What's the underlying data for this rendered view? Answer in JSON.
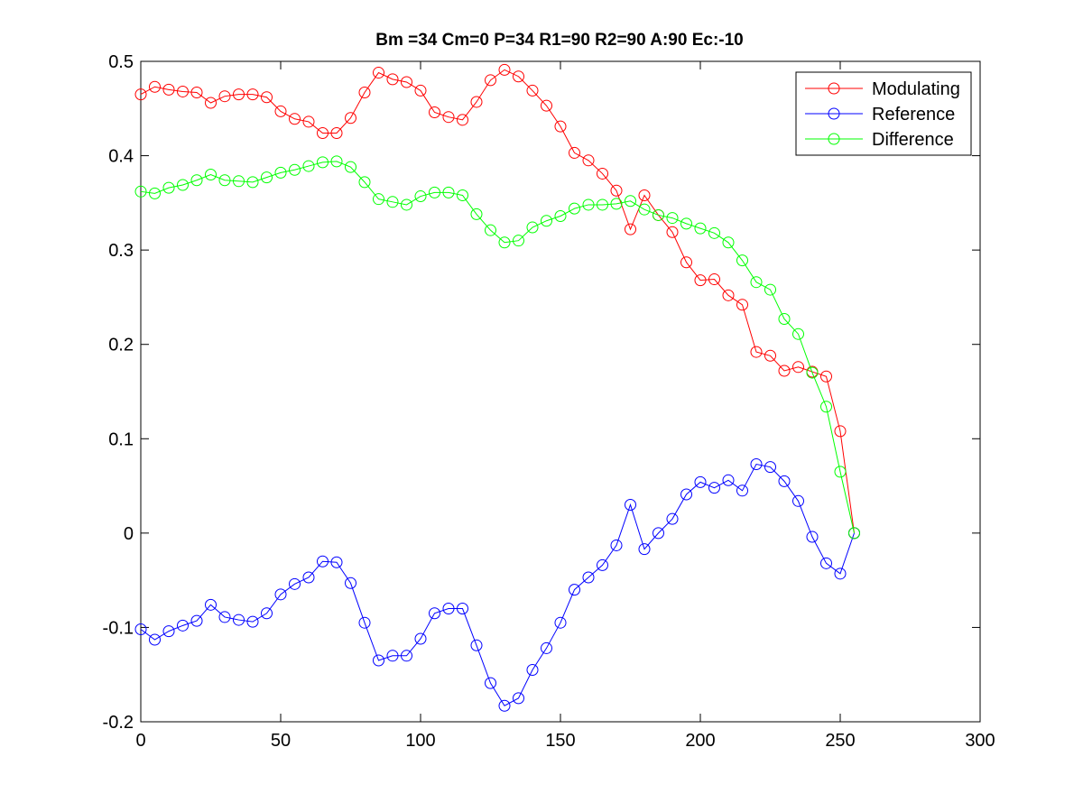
{
  "chart_data": {
    "type": "line",
    "title": "Bm =34  Cm=0  P=34  R1=90  R2=90  A:90  Ec:-10",
    "xlabel": "",
    "ylabel": "",
    "xlim": [
      0,
      300
    ],
    "ylim": [
      -0.2,
      0.5
    ],
    "xticks": [
      0,
      50,
      100,
      150,
      200,
      250,
      300
    ],
    "yticks": [
      -0.2,
      -0.1,
      0,
      0.1,
      0.2,
      0.3,
      0.4,
      0.5
    ],
    "xtick_labels": [
      "0",
      "50",
      "100",
      "150",
      "200",
      "250",
      "300"
    ],
    "ytick_labels": [
      "-0.2",
      "-0.1",
      "0",
      "0.1",
      "0.2",
      "0.3",
      "0.4",
      "0.5"
    ],
    "grid": false,
    "legend_position": "top-right",
    "x": [
      0,
      5,
      10,
      15,
      20,
      25,
      30,
      35,
      40,
      45,
      50,
      55,
      60,
      65,
      70,
      75,
      80,
      85,
      90,
      95,
      100,
      105,
      110,
      115,
      120,
      125,
      130,
      135,
      140,
      145,
      150,
      155,
      160,
      165,
      170,
      175,
      180,
      185,
      190,
      195,
      200,
      205,
      210,
      215,
      220,
      225,
      230,
      235,
      240,
      245,
      250,
      255
    ],
    "series": [
      {
        "name": "Modulating",
        "color": "#ff0000",
        "marker": "circle",
        "values": [
          0.465,
          0.473,
          0.47,
          0.468,
          0.467,
          0.456,
          0.463,
          0.465,
          0.465,
          0.462,
          0.447,
          0.439,
          0.436,
          0.424,
          0.424,
          0.44,
          0.467,
          0.488,
          0.481,
          0.478,
          0.469,
          0.446,
          0.441,
          0.438,
          0.457,
          0.48,
          0.491,
          0.484,
          0.469,
          0.453,
          0.431,
          0.403,
          0.395,
          0.381,
          0.363,
          0.322,
          0.358,
          0.337,
          0.319,
          0.287,
          0.268,
          0.269,
          0.252,
          0.242,
          0.192,
          0.188,
          0.172,
          0.176,
          0.171,
          0.166,
          0.108,
          0.0
        ]
      },
      {
        "name": "Reference",
        "color": "#0000ff",
        "marker": "circle",
        "values": [
          -0.102,
          -0.113,
          -0.104,
          -0.098,
          -0.093,
          -0.076,
          -0.089,
          -0.092,
          -0.094,
          -0.085,
          -0.065,
          -0.054,
          -0.047,
          -0.03,
          -0.031,
          -0.053,
          -0.095,
          -0.135,
          -0.13,
          -0.13,
          -0.112,
          -0.085,
          -0.08,
          -0.08,
          -0.119,
          -0.159,
          -0.183,
          -0.175,
          -0.145,
          -0.122,
          -0.095,
          -0.06,
          -0.047,
          -0.034,
          -0.013,
          0.03,
          -0.017,
          0.0,
          0.015,
          0.041,
          0.054,
          0.048,
          0.056,
          0.045,
          0.073,
          0.07,
          0.055,
          0.034,
          -0.004,
          -0.032,
          -0.043,
          0.0
        ]
      },
      {
        "name": "Difference",
        "color": "#00ff00",
        "marker": "circle",
        "values": [
          0.362,
          0.36,
          0.366,
          0.369,
          0.374,
          0.38,
          0.374,
          0.373,
          0.372,
          0.377,
          0.382,
          0.385,
          0.389,
          0.393,
          0.394,
          0.388,
          0.372,
          0.354,
          0.351,
          0.348,
          0.357,
          0.361,
          0.361,
          0.358,
          0.338,
          0.321,
          0.308,
          0.31,
          0.324,
          0.331,
          0.336,
          0.344,
          0.348,
          0.348,
          0.349,
          0.352,
          0.343,
          0.337,
          0.334,
          0.328,
          0.323,
          0.318,
          0.308,
          0.289,
          0.266,
          0.258,
          0.227,
          0.211,
          0.17,
          0.134,
          0.065,
          0.0
        ]
      }
    ]
  }
}
